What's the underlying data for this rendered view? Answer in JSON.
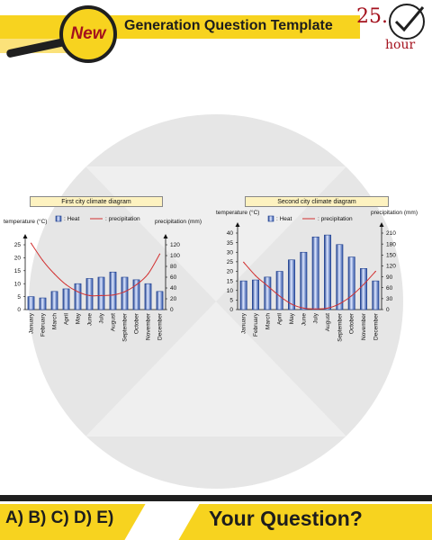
{
  "header": {
    "badge": "New",
    "title": "Generation Question Template",
    "hour_number": "25.",
    "hour_label": "hour"
  },
  "footer": {
    "answers": "A) B) C) D) E)",
    "question": "Your Question?"
  },
  "chart_data": [
    {
      "type": "bar",
      "title": "First city climate diagram",
      "legend": [
        "Heat",
        "precipitation"
      ],
      "ylabel_left": "temperature (°C)",
      "ylabel_right": "precipitation (mm)",
      "ylim_left": [
        0,
        25
      ],
      "yticks_left": [
        0,
        5,
        10,
        15,
        20,
        25
      ],
      "ylim_right": [
        0,
        120
      ],
      "yticks_right": [
        0,
        20,
        40,
        60,
        80,
        100,
        120
      ],
      "categories": [
        "January",
        "February",
        "March",
        "April",
        "May",
        "June",
        "July",
        "August",
        "September",
        "October",
        "November",
        "December"
      ],
      "temperature": [
        5,
        4.5,
        7,
        8,
        10,
        12,
        12.5,
        14.5,
        12.5,
        11.5,
        10,
        7
      ],
      "precipitation": [
        123,
        91,
        66,
        46,
        33,
        26,
        26,
        27,
        33,
        46,
        66,
        103
      ]
    },
    {
      "type": "bar",
      "title": "Second city climate diagram",
      "legend": [
        "Heat",
        "precipitation"
      ],
      "ylabel_left": "temperature (°C)",
      "ylabel_right": "precipitation (mm)",
      "ylim_left": [
        0,
        40
      ],
      "yticks_left": [
        0,
        5,
        10,
        15,
        20,
        25,
        30,
        35,
        40
      ],
      "ylim_right": [
        0,
        210
      ],
      "yticks_right": [
        0,
        30,
        60,
        90,
        120,
        150,
        180,
        210
      ],
      "categories": [
        "January",
        "February",
        "March",
        "April",
        "May",
        "June",
        "July",
        "August",
        "September",
        "October",
        "November",
        "December"
      ],
      "temperature": [
        15,
        15.5,
        17,
        20,
        26,
        30,
        38,
        39,
        34,
        27.5,
        21.5,
        15
      ],
      "precipitation": [
        130,
        93,
        65,
        37,
        15,
        4,
        2,
        4,
        16,
        38,
        69,
        105
      ]
    }
  ]
}
